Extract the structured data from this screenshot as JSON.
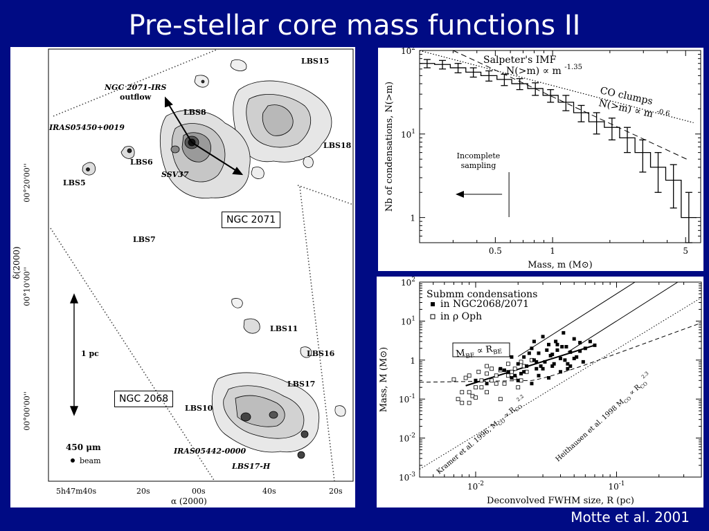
{
  "slide": {
    "title": "Pre-stellar core mass functions II",
    "credit": "Motte et al. 2001",
    "colors": {
      "background": "#000b84",
      "title": "#ffffff",
      "panel": "#ffffff",
      "ink": "#000000"
    }
  },
  "map_panel": {
    "ra_axis_label": "α (2000)",
    "dec_axis_label": "δ(2000)",
    "ra_ticks": [
      "5h47m40s",
      "20s",
      "00s",
      "40s",
      "20s"
    ],
    "dec_ticks": [
      "00°20'00''",
      "00°10'00''",
      "00°00'00''"
    ],
    "region_labels": [
      "NGC 2071",
      "NGC 2068"
    ],
    "sources": [
      "LBS15",
      "LBS8",
      "LBS18",
      "LBS6",
      "LBS5",
      "LBS7",
      "LBS11",
      "LBS16",
      "LBS17",
      "LBS10",
      "LBS17-H"
    ],
    "annotations": [
      "NGC 2071-IRS",
      "outflow",
      "IRAS05450+0019",
      "SSV37",
      "IRAS05442-0000"
    ],
    "scale_bar": "1 pc",
    "wavelength": "450 μm",
    "beam": "beam"
  },
  "chart_data": [
    {
      "type": "line",
      "xlabel": "Mass, m (M⊙)",
      "ylabel": "Nb of condensations, N(>m)",
      "x_scale": "log",
      "y_scale": "log",
      "xlim": [
        0.2,
        6
      ],
      "ylim": [
        0.5,
        100
      ],
      "x_ticks": [
        "0.5",
        "1",
        "5"
      ],
      "y_ticks": [
        "10^2",
        "10^1",
        "1"
      ],
      "series": [
        {
          "name": "",
          "style": "step with error bars",
          "x": [
            0.2,
            0.24,
            0.29,
            0.35,
            0.42,
            0.51,
            0.61,
            0.74,
            0.89,
            1.07,
            1.29,
            1.55,
            1.87,
            2.25,
            2.71,
            3.27,
            3.93,
            4.74,
            5.7
          ],
          "y": [
            70,
            68,
            62,
            55,
            50,
            45,
            40,
            35,
            29,
            24,
            18,
            14,
            12,
            9,
            6,
            4,
            2.8,
            1.0,
            1.0
          ],
          "err_low": [
            8,
            8,
            8,
            7,
            7,
            7,
            6,
            6,
            5,
            5,
            4,
            4,
            3.5,
            3,
            2.5,
            2,
            1.5,
            0.5,
            0.5
          ],
          "err_high": [
            8,
            8,
            8,
            7,
            7,
            7,
            6,
            6,
            5,
            5,
            4,
            4,
            3.5,
            3,
            2.5,
            2,
            1.5,
            1.0,
            1.0
          ]
        }
      ],
      "lines": [
        {
          "label": "Salpeter's IMF",
          "formula": "N(>m) ∝ m",
          "exponent": "-1.35",
          "style": "dashed"
        },
        {
          "label": "CO clumps",
          "formula": "N(>m) ∝ m",
          "exponent": "-0.6",
          "style": "dotted"
        }
      ],
      "annotations": [
        "Incomplete",
        "sampling"
      ]
    },
    {
      "type": "scatter",
      "xlabel": "Deconvolved FWHM size, R (pc)",
      "ylabel": "Mass, M (M⊙)",
      "x_scale": "log",
      "y_scale": "log",
      "xlim": [
        0.004,
        0.4
      ],
      "ylim": [
        0.001,
        100
      ],
      "x_ticks": [
        "10^-2",
        "10^-1"
      ],
      "y_ticks": [
        "10^2",
        "10^1",
        "1",
        "10^-1",
        "10^-2",
        "10^-3"
      ],
      "legend_title": "Submm condensations",
      "series": [
        {
          "name": "in NGC2068/2071",
          "marker": "filled square",
          "x": [
            0.01,
            0.012,
            0.015,
            0.017,
            0.018,
            0.02,
            0.021,
            0.022,
            0.023,
            0.025,
            0.026,
            0.027,
            0.028,
            0.03,
            0.031,
            0.033,
            0.034,
            0.035,
            0.037,
            0.038,
            0.04,
            0.042,
            0.044,
            0.045,
            0.047,
            0.05,
            0.052,
            0.055,
            0.058,
            0.06,
            0.02,
            0.022,
            0.025,
            0.028,
            0.03,
            0.033,
            0.036,
            0.04,
            0.043,
            0.047,
            0.018,
            0.024,
            0.027,
            0.032,
            0.038,
            0.045,
            0.05,
            0.026,
            0.029,
            0.035,
            0.041,
            0.055,
            0.065,
            0.07,
            0.016,
            0.019
          ],
          "y": [
            0.3,
            0.25,
            0.6,
            0.5,
            0.35,
            0.8,
            0.45,
            1.2,
            0.7,
            2.0,
            1.0,
            0.6,
            1.5,
            4.0,
            0.9,
            2.5,
            1.3,
            0.7,
            3.0,
            1.8,
            1.1,
            5.0,
            2.2,
            0.8,
            1.6,
            3.5,
            1.2,
            2.8,
            0.9,
            2.0,
            0.3,
            0.5,
            0.25,
            0.4,
            0.6,
            0.35,
            0.8,
            0.5,
            1.0,
            0.7,
            1.2,
            1.5,
            0.9,
            1.8,
            2.5,
            0.6,
            1.1,
            3.0,
            0.7,
            1.4,
            2.2,
            1.7,
            3.0,
            2.4,
            0.55,
            0.4
          ]
        },
        {
          "name": "in ρ Oph",
          "marker": "open square",
          "x": [
            0.007,
            0.0075,
            0.008,
            0.0085,
            0.009,
            0.0095,
            0.01,
            0.0105,
            0.011,
            0.012,
            0.013,
            0.014,
            0.015,
            0.016,
            0.017,
            0.018,
            0.019,
            0.02,
            0.021,
            0.022,
            0.008,
            0.009,
            0.01,
            0.011,
            0.012,
            0.013,
            0.014,
            0.015,
            0.017,
            0.019,
            0.021,
            0.023,
            0.025,
            0.009,
            0.012
          ],
          "y": [
            0.32,
            0.1,
            0.15,
            0.35,
            0.08,
            0.12,
            0.2,
            0.5,
            0.3,
            0.15,
            0.6,
            0.4,
            0.1,
            0.25,
            0.8,
            0.5,
            0.35,
            0.2,
            0.9,
            0.7,
            0.08,
            0.15,
            0.11,
            0.2,
            0.45,
            0.3,
            0.25,
            0.55,
            0.4,
            0.6,
            0.3,
            0.5,
            1.0,
            0.4,
            0.7
          ]
        }
      ],
      "lines": [
        {
          "label": "Kramer et al. 1996, M",
          "sub": "CO",
          "relation": "∝ R",
          "sub2": "CO",
          "exponent": "2.2",
          "style": "dotted"
        },
        {
          "label": "Heithausen et al. 1998",
          "formula": "M",
          "sub": "CO",
          "relation": "∝ R",
          "sub2": "CO",
          "exponent": "2.3",
          "style": "solid"
        },
        {
          "label": "",
          "style": "dashed"
        },
        {
          "label": "",
          "style": "solid"
        }
      ],
      "boxed_label": {
        "m": "M",
        "msub": "BE",
        "rel": "∝ R",
        "rsub": "BE"
      }
    }
  ]
}
